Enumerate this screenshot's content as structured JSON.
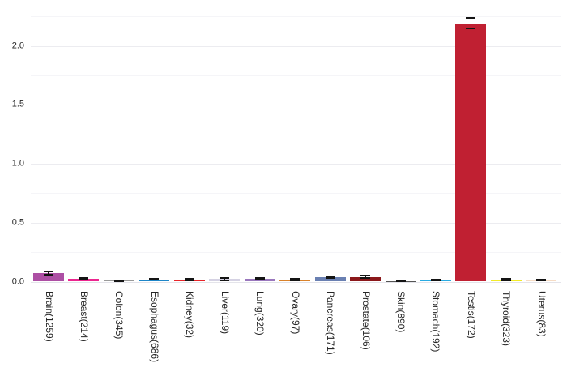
{
  "chart": {
    "background": "#ffffff",
    "grid_major_color": "#ececf0",
    "grid_minor_color": "#f5f5f8",
    "baseline_color": "#e4e4ea",
    "error_bar_color": "#141414",
    "tick_label_color": "#262626"
  },
  "chart_data": {
    "type": "bar",
    "title": "",
    "xlabel": "",
    "ylabel": "",
    "legend": "none",
    "grid": "on",
    "orientation": "vertical",
    "x_tick_rotation_degrees": 90,
    "categories": [
      "Brain(1259)",
      "Breast(214)",
      "Colon(345)",
      "Esophagus(686)",
      "Kidney(32)",
      "Liver(119)",
      "Lung(320)",
      "Ovary(97)",
      "Pancreas(171)",
      "Prostate(106)",
      "Skin(890)",
      "Stomach(192)",
      "Testis(172)",
      "Thyroid(323)",
      "Uterus(83)"
    ],
    "values": [
      0.07,
      0.026,
      0.009,
      0.018,
      0.018,
      0.021,
      0.025,
      0.017,
      0.038,
      0.04,
      0.006,
      0.016,
      2.19,
      0.017,
      0.012
    ],
    "errors": [
      0.012,
      0.006,
      0.004,
      0.004,
      0.006,
      0.008,
      0.006,
      0.005,
      0.007,
      0.009,
      0.003,
      0.005,
      0.045,
      0.006,
      0.004
    ],
    "bar_colors": [
      "#ad4fa4",
      "#ec268f",
      "#9a9a9a",
      "#1e86c8",
      "#e8252a",
      "#d5d2e3",
      "#9a77bd",
      "#d9822b",
      "#6a80b2",
      "#8b181b",
      "#555555",
      "#29abe2",
      "#c02032",
      "#f2eb29",
      "#f6dcc5"
    ],
    "ylim": [
      0,
      2.3
    ],
    "yticks": [
      "0.0",
      "0.5",
      "1.0",
      "1.5",
      "2.0"
    ],
    "ytick_values": [
      0,
      0.5,
      1.0,
      1.5,
      2.0
    ],
    "minor_grid_step": 0.25
  }
}
